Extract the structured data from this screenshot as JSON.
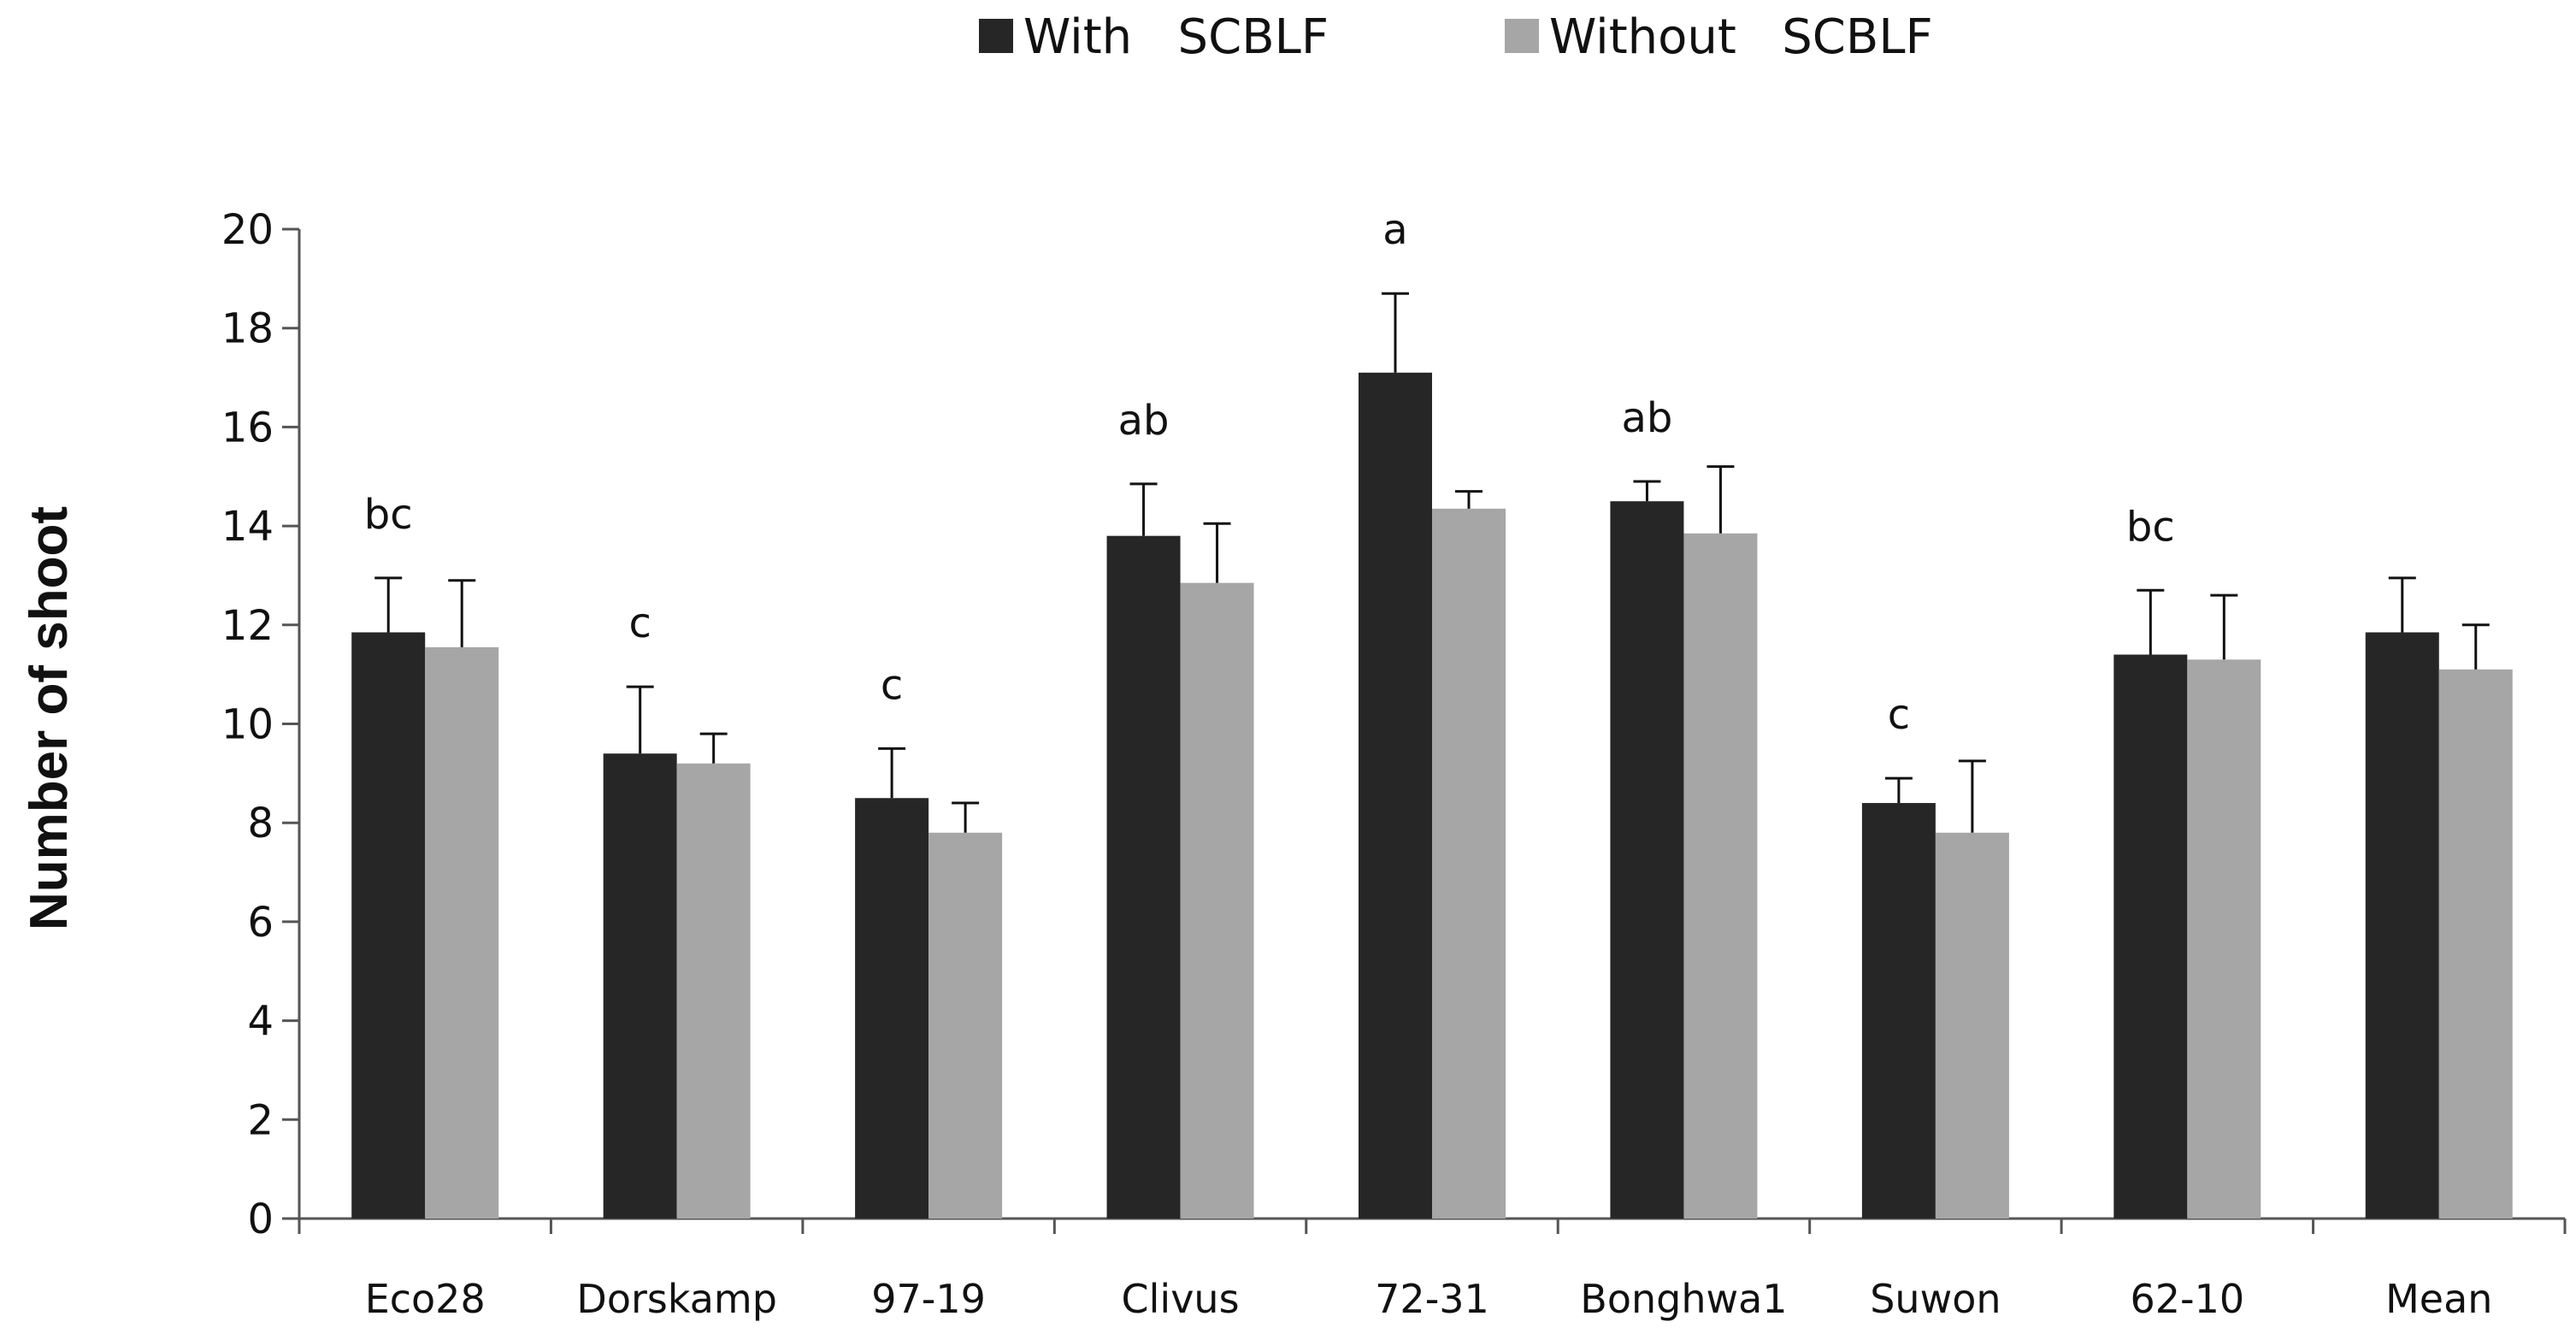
{
  "chart_data": {
    "type": "bar",
    "title": "",
    "xlabel": "",
    "ylabel": "Number   of   shoot",
    "ylim": [
      0,
      20
    ],
    "yticks": [
      "0",
      "2",
      "4",
      "6",
      "8",
      "10",
      "12",
      "14",
      "16",
      "18",
      "20"
    ],
    "grid": false,
    "legend": "top-center",
    "categories": [
      "Eco28",
      "Dorskamp",
      "97-19",
      "Clivus",
      "72-31",
      "Bonghwa1",
      "Suwon",
      "62-10",
      "Mean"
    ],
    "significance_labels": [
      "bc",
      "c",
      "c",
      "ab",
      "a",
      "ab",
      "c",
      "bc",
      ""
    ],
    "series": [
      {
        "name": "With   SCBLF",
        "color": "#262626",
        "values": [
          11.85,
          9.4,
          8.5,
          13.8,
          17.1,
          14.5,
          8.4,
          11.4,
          11.85
        ],
        "errors": [
          1.1,
          1.35,
          1.0,
          1.05,
          1.6,
          0.4,
          0.5,
          1.3,
          1.1
        ]
      },
      {
        "name": "Without   SCBLF",
        "color": "#a6a6a6",
        "values": [
          11.55,
          9.2,
          7.8,
          12.85,
          14.35,
          13.85,
          7.8,
          11.3,
          11.1
        ],
        "errors": [
          1.35,
          0.6,
          0.6,
          1.2,
          0.35,
          1.35,
          1.45,
          1.3,
          0.9
        ]
      }
    ]
  }
}
